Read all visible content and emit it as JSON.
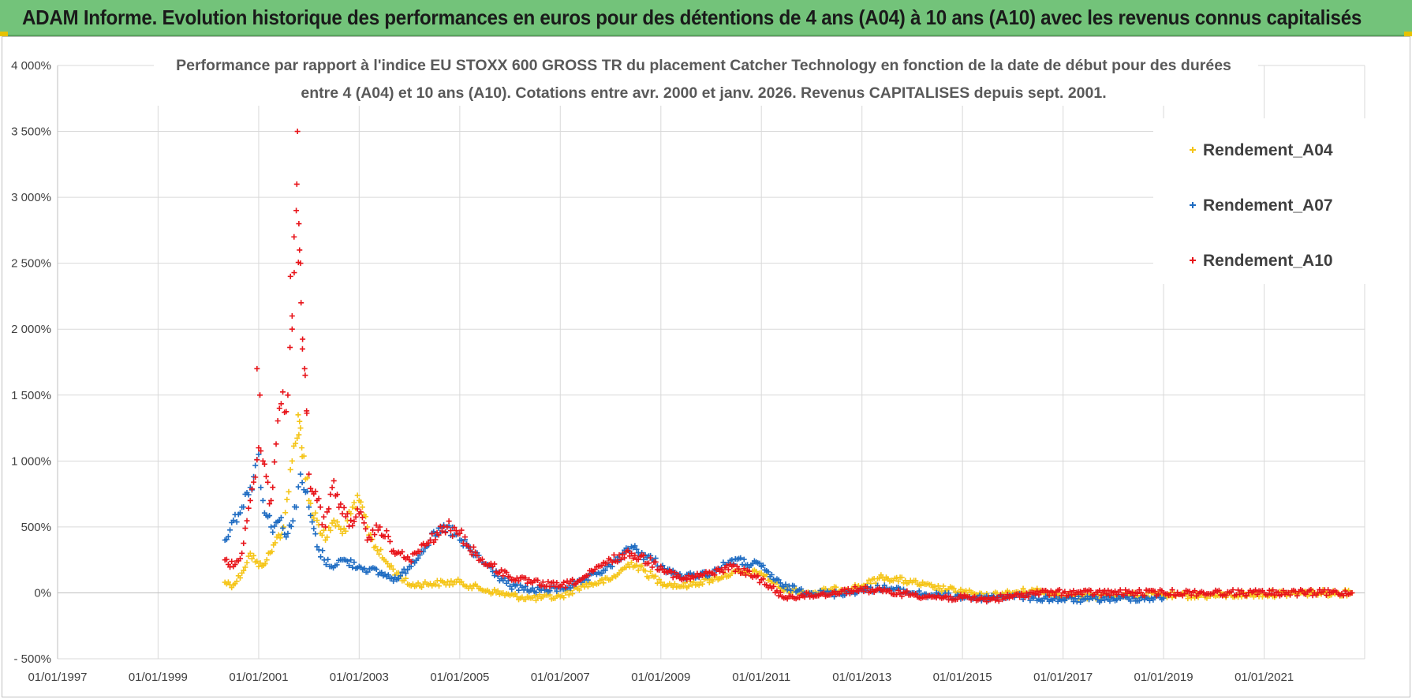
{
  "header": {
    "title": "ADAM Informe. Evolution historique des performances en euros pour des détentions de 4 ans (A04) à 10 ans (A10) avec les revenus connus capitalisés"
  },
  "chart_data": {
    "type": "scatter",
    "title_line1": "Performance par rapport à l'indice EU STOXX 600 GROSS TR  du placement Catcher Technology  en fonction de la date de début pour des durées",
    "title_line2": "entre 4 (A04) et 10 ans (A10). Cotations entre avr. 2000 et janv. 2026. Revenus CAPITALISES depuis sept. 2001.",
    "xlabel": "",
    "ylabel": "",
    "x_tick_labels": [
      "01/01/1997",
      "01/01/1999",
      "01/01/2001",
      "01/01/2003",
      "01/01/2005",
      "01/01/2007",
      "01/01/2009",
      "01/01/2011",
      "01/01/2013",
      "01/01/2015",
      "01/01/2017",
      "01/01/2019",
      "01/01/2021"
    ],
    "x_range": [
      "1997-01-01",
      "2023-01-01"
    ],
    "y_tick_labels": [
      "- 500%",
      "0%",
      "500%",
      "1 000%",
      "1 500%",
      "2 000%",
      "2 500%",
      "3 000%",
      "3 500%",
      "4 000%"
    ],
    "ylim": [
      -500,
      4000
    ],
    "grid": true,
    "legend_position": "top-right",
    "marker": "+",
    "series": [
      {
        "name": "Rendement_A04",
        "color": "#f5c518",
        "points": [
          [
            "2000-05-01",
            80
          ],
          [
            "2000-07-01",
            60
          ],
          [
            "2000-09-01",
            150
          ],
          [
            "2000-11-01",
            300
          ],
          [
            "2001-01-01",
            200
          ],
          [
            "2001-03-01",
            250
          ],
          [
            "2001-05-01",
            380
          ],
          [
            "2001-07-01",
            500
          ],
          [
            "2001-09-01",
            1000
          ],
          [
            "2001-11-01",
            1250
          ],
          [
            "2002-01-01",
            700
          ],
          [
            "2002-03-01",
            550
          ],
          [
            "2002-05-01",
            400
          ],
          [
            "2002-07-01",
            550
          ],
          [
            "2002-09-01",
            450
          ],
          [
            "2002-11-01",
            600
          ],
          [
            "2003-01-01",
            700
          ],
          [
            "2003-03-01",
            500
          ],
          [
            "2003-05-01",
            350
          ],
          [
            "2003-07-01",
            250
          ],
          [
            "2003-10-01",
            150
          ],
          [
            "2004-01-01",
            60
          ],
          [
            "2004-06-01",
            70
          ],
          [
            "2005-01-01",
            80
          ],
          [
            "2005-06-01",
            30
          ],
          [
            "2006-01-01",
            -20
          ],
          [
            "2006-06-01",
            -40
          ],
          [
            "2007-01-01",
            -30
          ],
          [
            "2007-06-01",
            50
          ],
          [
            "2008-01-01",
            100
          ],
          [
            "2008-06-01",
            230
          ],
          [
            "2009-01-01",
            80
          ],
          [
            "2009-06-01",
            50
          ],
          [
            "2010-01-01",
            100
          ],
          [
            "2010-06-01",
            150
          ],
          [
            "2011-01-01",
            150
          ],
          [
            "2011-06-01",
            30
          ],
          [
            "2012-01-01",
            0
          ],
          [
            "2012-06-01",
            20
          ],
          [
            "2013-01-01",
            50
          ],
          [
            "2013-06-01",
            120
          ],
          [
            "2014-01-01",
            80
          ],
          [
            "2014-06-01",
            40
          ],
          [
            "2015-01-01",
            10
          ],
          [
            "2015-06-01",
            -30
          ],
          [
            "2016-01-01",
            0
          ],
          [
            "2016-06-01",
            20
          ],
          [
            "2017-01-01",
            -20
          ],
          [
            "2017-06-01",
            -30
          ],
          [
            "2018-01-01",
            -20
          ],
          [
            "2019-01-01",
            -20
          ],
          [
            "2020-01-01",
            -20
          ],
          [
            "2021-01-01",
            -10
          ],
          [
            "2022-01-01",
            0
          ],
          [
            "2022-10-01",
            0
          ]
        ]
      },
      {
        "name": "Rendement_A07",
        "color": "#1f6cc2",
        "points": [
          [
            "2000-05-01",
            400
          ],
          [
            "2000-07-01",
            550
          ],
          [
            "2000-09-01",
            650
          ],
          [
            "2000-11-01",
            800
          ],
          [
            "2001-01-01",
            1050
          ],
          [
            "2001-02-01",
            700
          ],
          [
            "2001-04-01",
            500
          ],
          [
            "2001-06-01",
            550
          ],
          [
            "2001-08-01",
            450
          ],
          [
            "2001-10-01",
            650
          ],
          [
            "2001-11-01",
            900
          ],
          [
            "2002-01-01",
            650
          ],
          [
            "2002-03-01",
            350
          ],
          [
            "2002-06-01",
            200
          ],
          [
            "2002-09-01",
            250
          ],
          [
            "2003-01-01",
            200
          ],
          [
            "2003-06-01",
            150
          ],
          [
            "2003-10-01",
            100
          ],
          [
            "2004-01-01",
            200
          ],
          [
            "2004-06-01",
            400
          ],
          [
            "2004-10-01",
            500
          ],
          [
            "2005-01-01",
            400
          ],
          [
            "2005-06-01",
            250
          ],
          [
            "2006-01-01",
            50
          ],
          [
            "2006-06-01",
            20
          ],
          [
            "2007-01-01",
            30
          ],
          [
            "2007-06-01",
            80
          ],
          [
            "2008-01-01",
            200
          ],
          [
            "2008-06-01",
            350
          ],
          [
            "2009-01-01",
            200
          ],
          [
            "2009-06-01",
            120
          ],
          [
            "2010-01-01",
            150
          ],
          [
            "2010-06-01",
            250
          ],
          [
            "2011-01-01",
            200
          ],
          [
            "2011-06-01",
            50
          ],
          [
            "2012-01-01",
            0
          ],
          [
            "2012-06-01",
            -10
          ],
          [
            "2013-01-01",
            20
          ],
          [
            "2013-06-01",
            40
          ],
          [
            "2014-01-01",
            0
          ],
          [
            "2014-06-01",
            -20
          ],
          [
            "2015-01-01",
            -30
          ],
          [
            "2015-06-01",
            -40
          ],
          [
            "2016-01-01",
            -20
          ],
          [
            "2016-06-01",
            -40
          ],
          [
            "2017-01-01",
            -50
          ],
          [
            "2017-06-01",
            -50
          ],
          [
            "2018-01-01",
            -45
          ],
          [
            "2018-06-01",
            -40
          ],
          [
            "2019-01-01",
            -40
          ]
        ]
      },
      {
        "name": "Rendement_A10",
        "color": "#e8141a",
        "points": [
          [
            "2000-05-01",
            250
          ],
          [
            "2000-07-01",
            200
          ],
          [
            "2000-09-01",
            300
          ],
          [
            "2000-11-01",
            700
          ],
          [
            "2001-01-01",
            1100
          ],
          [
            "2001-02-01",
            1000
          ],
          [
            "2001-04-01",
            700
          ],
          [
            "2001-06-01",
            1400
          ],
          [
            "2001-08-01",
            1500
          ],
          [
            "2001-09-01",
            2000
          ],
          [
            "2001-10-01",
            2900
          ],
          [
            "2001-11-01",
            2500
          ],
          [
            "2001-12-01",
            1700
          ],
          [
            "2002-01-01",
            900
          ],
          [
            "2002-03-01",
            700
          ],
          [
            "2002-05-01",
            500
          ],
          [
            "2002-07-01",
            850
          ],
          [
            "2002-09-01",
            600
          ],
          [
            "2002-11-01",
            550
          ],
          [
            "2003-01-01",
            600
          ],
          [
            "2003-03-01",
            400
          ],
          [
            "2003-06-01",
            500
          ],
          [
            "2003-10-01",
            300
          ],
          [
            "2004-01-01",
            250
          ],
          [
            "2004-06-01",
            400
          ],
          [
            "2004-10-01",
            500
          ],
          [
            "2005-01-01",
            450
          ],
          [
            "2005-06-01",
            250
          ],
          [
            "2006-01-01",
            120
          ],
          [
            "2006-06-01",
            80
          ],
          [
            "2007-01-01",
            50
          ],
          [
            "2007-06-01",
            100
          ],
          [
            "2008-01-01",
            250
          ],
          [
            "2008-06-01",
            300
          ],
          [
            "2009-01-01",
            200
          ],
          [
            "2009-06-01",
            100
          ],
          [
            "2010-01-01",
            150
          ],
          [
            "2010-06-01",
            200
          ],
          [
            "2011-01-01",
            100
          ],
          [
            "2011-06-01",
            -30
          ],
          [
            "2012-01-01",
            -20
          ],
          [
            "2012-06-01",
            0
          ],
          [
            "2013-01-01",
            30
          ],
          [
            "2013-06-01",
            10
          ],
          [
            "2014-01-01",
            -10
          ],
          [
            "2014-06-01",
            -30
          ],
          [
            "2015-01-01",
            -40
          ],
          [
            "2015-06-01",
            -50
          ],
          [
            "2016-01-01",
            -30
          ],
          [
            "2016-06-01",
            0
          ],
          [
            "2017-01-01",
            0
          ],
          [
            "2018-01-01",
            0
          ],
          [
            "2019-01-01",
            0
          ],
          [
            "2020-01-01",
            0
          ],
          [
            "2021-01-01",
            0
          ],
          [
            "2022-01-01",
            0
          ],
          [
            "2022-10-01",
            0
          ]
        ]
      }
    ]
  }
}
